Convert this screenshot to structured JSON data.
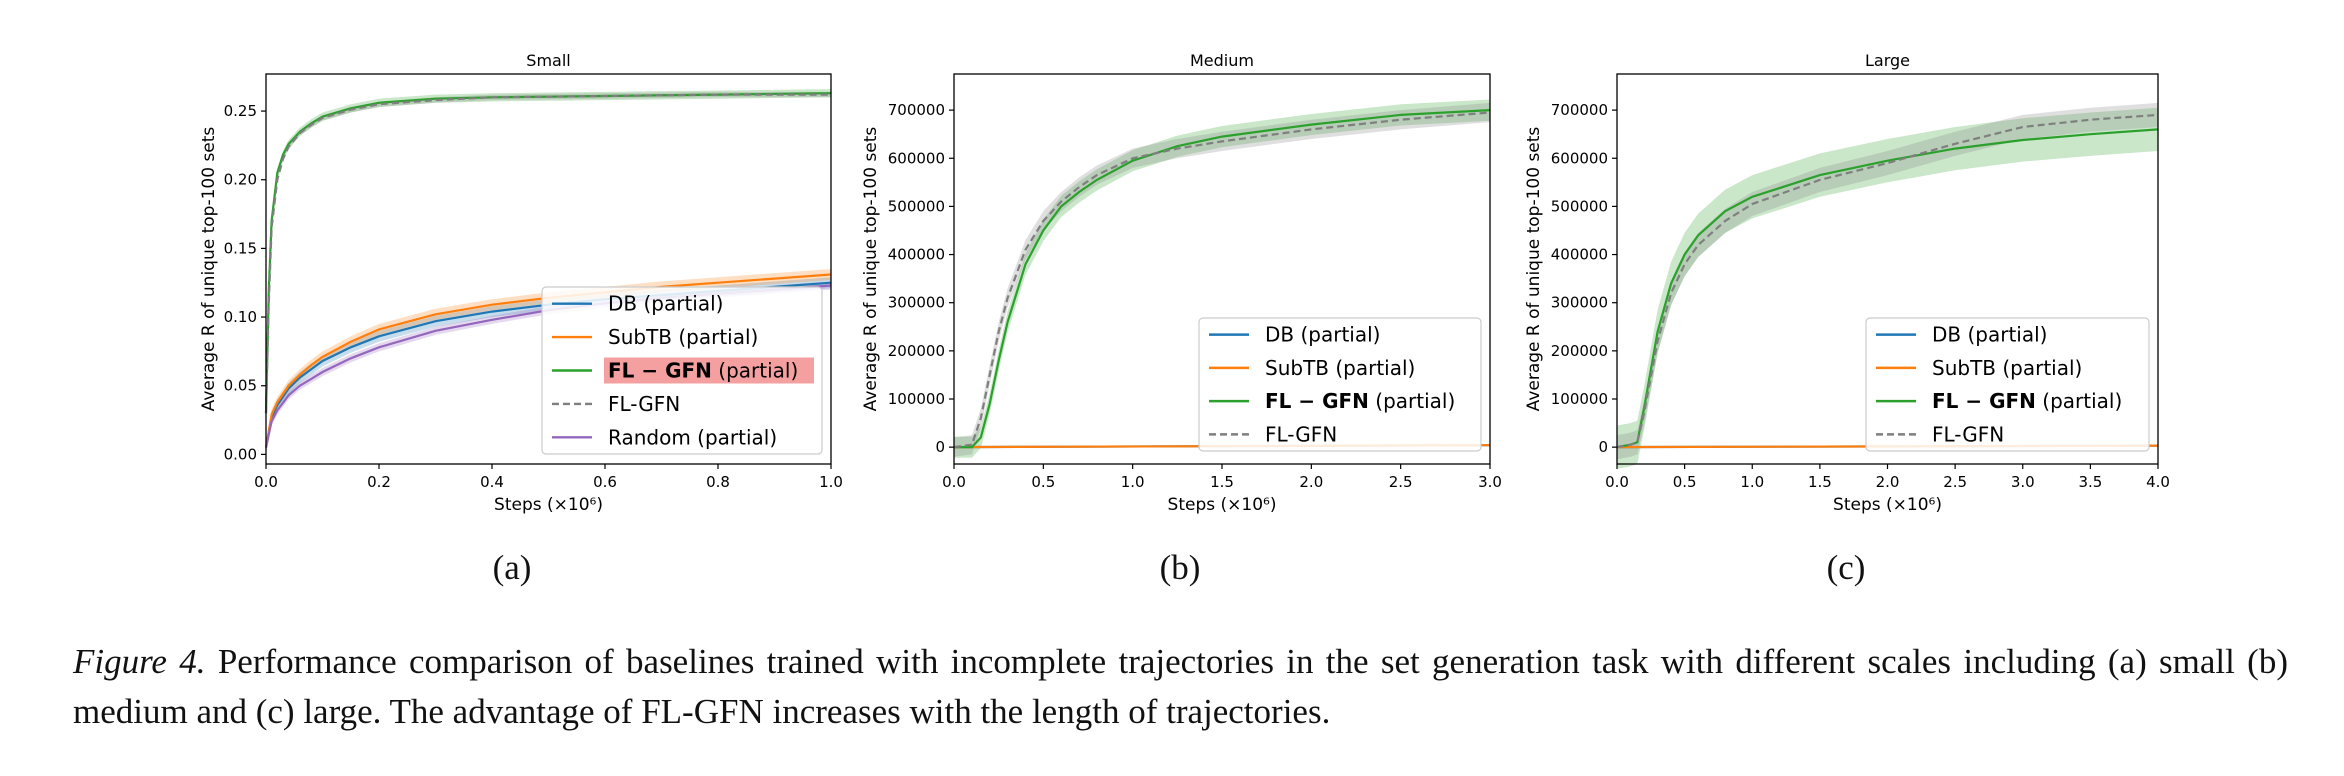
{
  "chart_data": [
    {
      "type": "line",
      "title": "Small",
      "panel_label": "(a)",
      "xlabel": "Steps (×10⁶)",
      "ylabel": "Average R of unique top-100 sets",
      "xlim": [
        0,
        1.0
      ],
      "ylim": [
        -0.007,
        0.277
      ],
      "xticks": [
        0.0,
        0.2,
        0.4,
        0.6,
        0.8,
        1.0
      ],
      "xtick_labels": [
        "0.0",
        "0.2",
        "0.4",
        "0.6",
        "0.8",
        "1.0"
      ],
      "yticks": [
        0.0,
        0.05,
        0.1,
        0.15,
        0.2,
        0.25
      ],
      "ytick_labels": [
        "0.00",
        "0.05",
        "0.10",
        "0.15",
        "0.20",
        "0.25"
      ],
      "grid": false,
      "legend_position": "lower-right",
      "legend_highlight": "FL − GFN (partial)",
      "series": [
        {
          "name": "DB (partial)",
          "color": "#1f77b4",
          "dash": "solid",
          "band": 0.004,
          "x": [
            0,
            0.01,
            0.02,
            0.04,
            0.06,
            0.08,
            0.1,
            0.15,
            0.2,
            0.3,
            0.4,
            0.5,
            0.6,
            0.7,
            0.8,
            0.9,
            1.0
          ],
          "y": [
            0.005,
            0.027,
            0.036,
            0.048,
            0.056,
            0.062,
            0.068,
            0.078,
            0.086,
            0.097,
            0.104,
            0.109,
            0.113,
            0.116,
            0.119,
            0.122,
            0.125
          ]
        },
        {
          "name": "SubTB (partial)",
          "color": "#ff7f0e",
          "dash": "solid",
          "band": 0.004,
          "x": [
            0,
            0.01,
            0.02,
            0.04,
            0.06,
            0.08,
            0.1,
            0.15,
            0.2,
            0.3,
            0.4,
            0.5,
            0.6,
            0.7,
            0.8,
            0.9,
            1.0
          ],
          "y": [
            0.005,
            0.029,
            0.038,
            0.05,
            0.058,
            0.065,
            0.071,
            0.082,
            0.091,
            0.102,
            0.109,
            0.114,
            0.118,
            0.122,
            0.125,
            0.128,
            0.131
          ]
        },
        {
          "name": "FL − GFN (partial)",
          "color": "#2ca02c",
          "dash": "solid",
          "band": 0.003,
          "x": [
            0,
            0.005,
            0.01,
            0.02,
            0.03,
            0.04,
            0.06,
            0.08,
            0.1,
            0.15,
            0.2,
            0.3,
            0.4,
            0.6,
            0.8,
            1.0
          ],
          "y": [
            0.03,
            0.12,
            0.17,
            0.205,
            0.218,
            0.226,
            0.235,
            0.241,
            0.246,
            0.252,
            0.256,
            0.259,
            0.26,
            0.261,
            0.262,
            0.263
          ]
        },
        {
          "name": "FL-GFN",
          "color": "#7f7f7f",
          "dash": "dashed",
          "band": 0.002,
          "x": [
            0,
            0.005,
            0.01,
            0.02,
            0.03,
            0.04,
            0.06,
            0.08,
            0.1,
            0.15,
            0.2,
            0.3,
            0.4,
            0.6,
            0.8,
            1.0
          ],
          "y": [
            0.03,
            0.11,
            0.165,
            0.2,
            0.215,
            0.224,
            0.234,
            0.24,
            0.245,
            0.251,
            0.255,
            0.258,
            0.26,
            0.261,
            0.262,
            0.262
          ]
        },
        {
          "name": "Random (partial)",
          "color": "#9467bd",
          "dash": "solid",
          "band": 0.003,
          "x": [
            0,
            0.01,
            0.02,
            0.04,
            0.06,
            0.08,
            0.1,
            0.15,
            0.2,
            0.3,
            0.4,
            0.5,
            0.6,
            0.7,
            0.8,
            0.9,
            1.0
          ],
          "y": [
            0.005,
            0.024,
            0.032,
            0.043,
            0.05,
            0.055,
            0.06,
            0.07,
            0.078,
            0.09,
            0.098,
            0.105,
            0.11,
            0.114,
            0.117,
            0.12,
            0.123
          ]
        }
      ]
    },
    {
      "type": "line",
      "title": "Medium",
      "panel_label": "(b)",
      "xlabel": "Steps (×10⁶)",
      "ylabel": "Average R of unique top-100 sets",
      "xlim": [
        0,
        3.0
      ],
      "ylim": [
        -35000,
        775000
      ],
      "xticks": [
        0.0,
        0.5,
        1.0,
        1.5,
        2.0,
        2.5,
        3.0
      ],
      "xtick_labels": [
        "0.0",
        "0.5",
        "1.0",
        "1.5",
        "2.0",
        "2.5",
        "3.0"
      ],
      "yticks": [
        0,
        100000,
        200000,
        300000,
        400000,
        500000,
        600000,
        700000
      ],
      "ytick_labels": [
        "0",
        "100000",
        "200000",
        "300000",
        "400000",
        "500000",
        "600000",
        "700000"
      ],
      "grid": false,
      "legend_position": "lower-right",
      "series": [
        {
          "name": "DB (partial)",
          "color": "#1f77b4",
          "dash": "solid",
          "band": 0,
          "x": [
            0,
            3.0
          ],
          "y": [
            0,
            4000
          ]
        },
        {
          "name": "SubTB (partial)",
          "color": "#ff7f0e",
          "dash": "solid",
          "band": 0,
          "x": [
            0,
            3.0
          ],
          "y": [
            0,
            4000
          ]
        },
        {
          "name": "FL − GFN (partial)",
          "color": "#2ca02c",
          "dash": "solid",
          "band": 22000,
          "x": [
            0,
            0.1,
            0.15,
            0.2,
            0.25,
            0.3,
            0.4,
            0.5,
            0.6,
            0.7,
            0.8,
            1.0,
            1.25,
            1.5,
            2.0,
            2.5,
            3.0
          ],
          "y": [
            0,
            0,
            20000,
            90000,
            180000,
            260000,
            380000,
            450000,
            500000,
            530000,
            555000,
            595000,
            625000,
            645000,
            670000,
            690000,
            700000
          ]
        },
        {
          "name": "FL-GFN",
          "color": "#7f7f7f",
          "dash": "dashed",
          "band": 20000,
          "x": [
            0,
            0.1,
            0.15,
            0.2,
            0.25,
            0.3,
            0.4,
            0.5,
            0.6,
            0.7,
            0.8,
            1.0,
            1.25,
            1.5,
            2.0,
            2.5,
            3.0
          ],
          "y": [
            0,
            5000,
            60000,
            150000,
            240000,
            310000,
            410000,
            470000,
            510000,
            540000,
            565000,
            600000,
            620000,
            635000,
            660000,
            680000,
            695000
          ]
        }
      ]
    },
    {
      "type": "line",
      "title": "Large",
      "panel_label": "(c)",
      "xlabel": "Steps (×10⁶)",
      "ylabel": "Average R of unique top-100 sets",
      "xlim": [
        0,
        4.0
      ],
      "ylim": [
        -35000,
        775000
      ],
      "xticks": [
        0.0,
        0.5,
        1.0,
        1.5,
        2.0,
        2.5,
        3.0,
        3.5,
        4.0
      ],
      "xtick_labels": [
        "0.0",
        "0.5",
        "1.0",
        "1.5",
        "2.0",
        "2.5",
        "3.0",
        "3.5",
        "4.0"
      ],
      "yticks": [
        0,
        100000,
        200000,
        300000,
        400000,
        500000,
        600000,
        700000
      ],
      "ytick_labels": [
        "0",
        "100000",
        "200000",
        "300000",
        "400000",
        "500000",
        "600000",
        "700000"
      ],
      "grid": false,
      "legend_position": "lower-right",
      "series": [
        {
          "name": "DB (partial)",
          "color": "#1f77b4",
          "dash": "solid",
          "band": 0,
          "x": [
            0,
            4.0
          ],
          "y": [
            0,
            3000
          ]
        },
        {
          "name": "SubTB (partial)",
          "color": "#ff7f0e",
          "dash": "solid",
          "band": 0,
          "x": [
            0,
            4.0
          ],
          "y": [
            0,
            3000
          ]
        },
        {
          "name": "FL − GFN (partial)",
          "color": "#2ca02c",
          "dash": "solid",
          "band": 45000,
          "x": [
            0,
            0.1,
            0.15,
            0.2,
            0.3,
            0.4,
            0.5,
            0.6,
            0.8,
            1.0,
            1.5,
            2.0,
            2.5,
            3.0,
            3.5,
            4.0
          ],
          "y": [
            0,
            5000,
            10000,
            80000,
            240000,
            340000,
            400000,
            440000,
            490000,
            520000,
            565000,
            595000,
            620000,
            638000,
            650000,
            660000
          ]
        },
        {
          "name": "FL-GFN",
          "color": "#7f7f7f",
          "dash": "dashed",
          "band": 25000,
          "x": [
            0,
            0.1,
            0.15,
            0.2,
            0.3,
            0.4,
            0.5,
            0.6,
            0.8,
            1.0,
            1.5,
            2.0,
            2.5,
            3.0,
            3.5,
            4.0
          ],
          "y": [
            0,
            5000,
            10000,
            70000,
            220000,
            320000,
            380000,
            420000,
            470000,
            505000,
            555000,
            590000,
            630000,
            665000,
            680000,
            690000
          ]
        }
      ]
    }
  ],
  "caption": {
    "label": "Figure 4.",
    "text": " Performance comparison of baselines trained with incomplete trajectories in the set generation task with different scales including (a) small (b) medium and (c) large. The advantage of FL-GFN increases with the length of trajectories."
  }
}
